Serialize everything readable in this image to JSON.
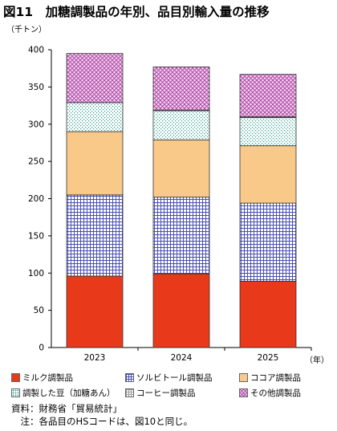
{
  "title": "図11　加糖調製品の年別、品目別輸入量の推移",
  "chart_data": {
    "type": "bar",
    "stacked": true,
    "categories": [
      "2023",
      "2024",
      "2025"
    ],
    "series": [
      {
        "name": "ミルク調製品",
        "values": [
          96,
          99,
          89
        ],
        "color": "#e8391b",
        "pattern": "solid"
      },
      {
        "name": "ソルビトール調製品",
        "values": [
          109,
          103,
          105
        ],
        "color": "#4a4fb8",
        "pattern": "grid"
      },
      {
        "name": "ココア調製品",
        "values": [
          85,
          77,
          77
        ],
        "color": "#f9c98a",
        "pattern": "solid"
      },
      {
        "name": "調製した豆（加糖あん）",
        "values": [
          39,
          39,
          38
        ],
        "color": "#4aa8a0",
        "pattern": "dots"
      },
      {
        "name": "コーヒー調製品",
        "values": [
          0,
          1,
          1
        ],
        "color": "#999999",
        "pattern": "grid"
      },
      {
        "name": "その他調製品",
        "values": [
          66,
          58,
          57
        ],
        "color": "#b04ba8",
        "pattern": "diamond"
      }
    ],
    "ylabel": "（千トン）",
    "xlabel": "（年）",
    "ylim": [
      0,
      400
    ],
    "yticks": [
      0,
      50,
      100,
      150,
      200,
      250,
      300,
      350,
      400
    ],
    "grid": false,
    "legend_position": "bottom"
  },
  "notes": {
    "source": "資料：財務省「貿易統計」",
    "note": "　注：各品目のHSコードは、図10と同じ。"
  }
}
